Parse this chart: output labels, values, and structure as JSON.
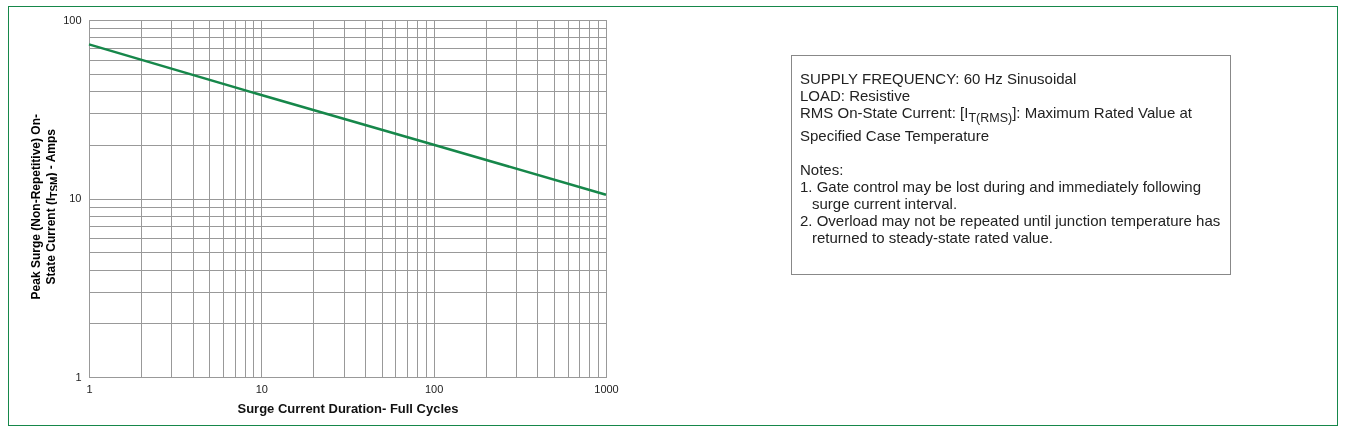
{
  "chart_data": {
    "type": "line",
    "xlabel": "Surge Current Duration- Full Cycles",
    "ylabel": "Peak Surge (Non-Repetitive) On-State Current (I$_{TSM}$) - Amps",
    "x": [
      1,
      10,
      100,
      1000
    ],
    "series": [
      {
        "color": "#16874a",
        "values": [
          73,
          38,
          20,
          10.5
        ]
      }
    ],
    "log": "xy",
    "grid": true,
    "marker": "none",
    "line_style": "solid",
    "xlim": [
      1,
      1000
    ],
    "ylim": [
      1,
      100
    ],
    "xticks": [
      1,
      {
        "value": 2,
        "label": null
      },
      {
        "value": 3,
        "label": null
      },
      {
        "value": 4,
        "label": null
      },
      {
        "value": 5,
        "label": null
      },
      {
        "value": 6,
        "label": null
      },
      {
        "value": 7,
        "label": null
      },
      {
        "value": 8,
        "label": null
      },
      {
        "value": 9,
        "label": null
      },
      10,
      {
        "value": 20,
        "label": null
      },
      {
        "value": 30,
        "label": null
      },
      {
        "value": 40,
        "label": null
      },
      {
        "value": 50,
        "label": null
      },
      {
        "value": 60,
        "label": null
      },
      {
        "value": 70,
        "label": null
      },
      {
        "value": 80,
        "label": null
      },
      {
        "value": 90,
        "label": null
      },
      100,
      {
        "value": 200,
        "label": null
      },
      {
        "value": 300,
        "label": null
      },
      {
        "value": 400,
        "label": null
      },
      {
        "value": 500,
        "label": null
      },
      {
        "value": 600,
        "label": null
      },
      {
        "value": 700,
        "label": null
      },
      {
        "value": 800,
        "label": null
      },
      {
        "value": 900,
        "label": null
      },
      1000
    ],
    "yticks": [
      1,
      {
        "value": 2,
        "label": null
      },
      {
        "value": 3,
        "label": null
      },
      {
        "value": 4,
        "label": null
      },
      {
        "value": 5,
        "label": null
      },
      {
        "value": 6,
        "label": null
      },
      {
        "value": 7,
        "label": null
      },
      {
        "value": 8,
        "label": null
      },
      {
        "value": 9,
        "label": null
      },
      10,
      {
        "value": 20,
        "label": null
      },
      {
        "value": 30,
        "label": null
      },
      {
        "value": 40,
        "label": null
      },
      {
        "value": 50,
        "label": null
      },
      {
        "value": 60,
        "label": null
      },
      {
        "value": 70,
        "label": null
      },
      {
        "value": 80,
        "label": null
      },
      {
        "value": 90,
        "label": null
      },
      100
    ],
    "annotations": [
      "SUPPLY FREQUENCY: 60 Hz Sinusoidal",
      "LOAD: Resistive",
      "RMS On-State Current: [I$_{T(RMS)}$]: Maximum Rated Value at Specified Case Temperature",
      "Notes:",
      "1. Gate control may be lost during and immediately following surge current interval.",
      "2. Overload may not be repeated until junction temperature has returned to steady-state rated value."
    ]
  }
}
